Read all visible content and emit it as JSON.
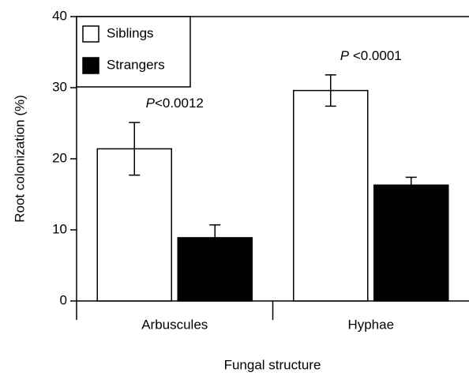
{
  "chart_data": {
    "type": "bar",
    "x_label": "Fungal structure",
    "y_label": "Root colonization (%)",
    "categories": [
      "Arbuscules",
      "Hyphae"
    ],
    "series": [
      {
        "name": "Siblings",
        "color": "#ffffff",
        "values": [
          21.4,
          29.6
        ],
        "errors": [
          3.7,
          2.2
        ]
      },
      {
        "name": "Strangers",
        "color": "#000000",
        "values": [
          8.9,
          16.3
        ],
        "errors": [
          1.8,
          1.1
        ]
      }
    ],
    "annotations": [
      {
        "parts": [
          "P",
          "<0.0012"
        ]
      },
      {
        "parts": [
          "P",
          " <0.0001"
        ]
      }
    ],
    "ylim": [
      0,
      40
    ],
    "yticks": [
      0,
      10,
      20,
      30,
      40
    ],
    "legend": "upper left"
  }
}
